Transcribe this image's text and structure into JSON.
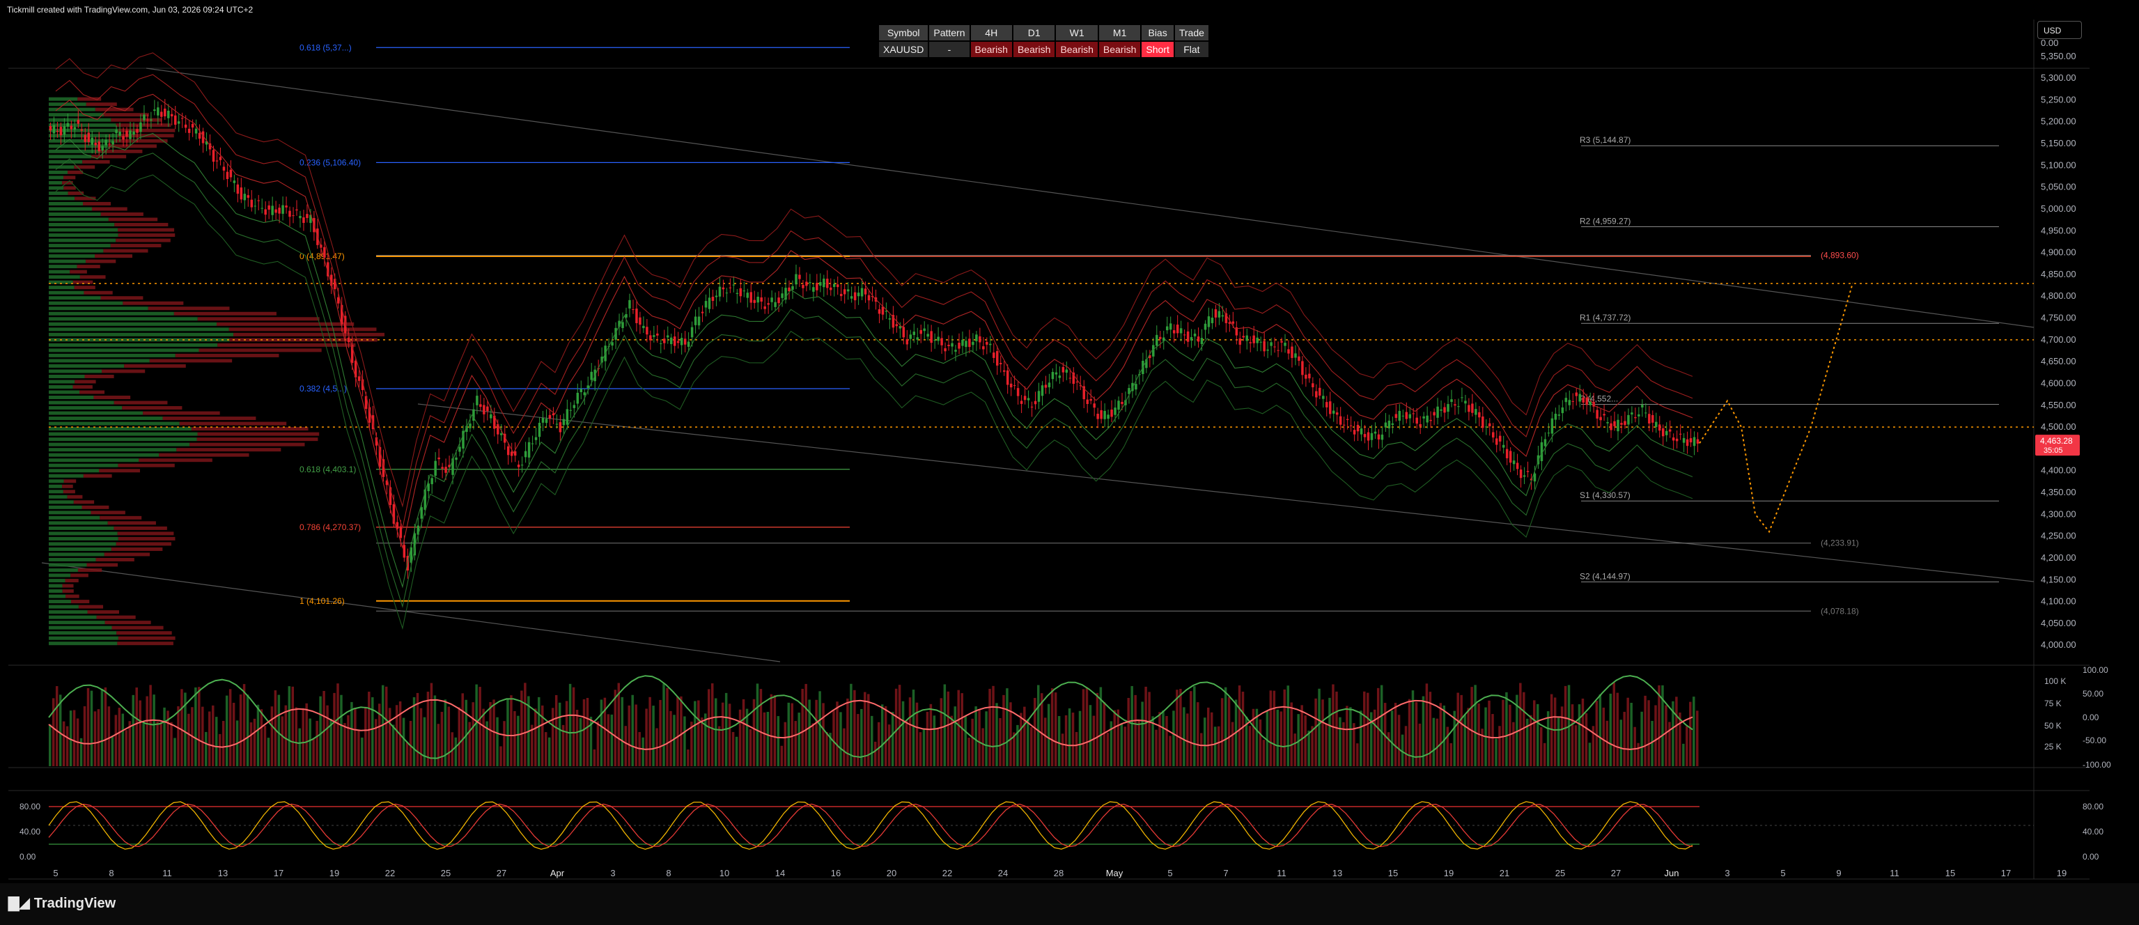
{
  "header": {
    "credit": "Tickmill created with TradingView.com, Jun 03, 2026 09:24 UTC+2",
    "currency": "USD"
  },
  "status_table": {
    "headers": [
      "Symbol",
      "Pattern",
      "4H",
      "D1",
      "W1",
      "M1",
      "Bias",
      "Trade"
    ],
    "values": [
      "XAUUSD",
      "-",
      "Bearish",
      "Bearish",
      "Bearish",
      "Bearish",
      "Short",
      "Flat"
    ]
  },
  "brand": {
    "logo_text": "TradingView",
    "logo_icon": "tradingview-logo-icon"
  },
  "colors": {
    "bg": "#000000",
    "up": "#2e9e3a",
    "down": "#e8202a",
    "fib_orange": "#ff9800",
    "fib_blue": "#2962ff",
    "price_tag": "#f23645"
  },
  "chart_data": {
    "type": "candlestick",
    "symbol": "XAUUSD",
    "price_axis": {
      "ticks": [
        "5,350.00",
        "5,300.00",
        "5,250.00",
        "5,200.00",
        "5,150.00",
        "5,100.00",
        "5,050.00",
        "5,000.00",
        "4,950.00",
        "4,900.00",
        "4,850.00",
        "4,800.00",
        "4,750.00",
        "4,700.00",
        "4,650.00",
        "4,600.00",
        "4,550.00",
        "4,500.00",
        "4,450.00",
        "4,400.00",
        "4,350.00",
        "4,300.00",
        "4,250.00",
        "4,200.00",
        "4,150.00",
        "4,100.00",
        "4,050.00",
        "4,000.00"
      ],
      "top_label": "0.00",
      "ylim": [
        3970,
        5380
      ]
    },
    "last_price": {
      "value": "4,463.28",
      "countdown": "35:05"
    },
    "x_axis_ticks": [
      "5",
      "8",
      "11",
      "13",
      "17",
      "19",
      "22",
      "25",
      "27",
      "Apr",
      "3",
      "8",
      "10",
      "14",
      "16",
      "20",
      "22",
      "24",
      "28",
      "May",
      "5",
      "7",
      "11",
      "13",
      "15",
      "19",
      "21",
      "25",
      "27",
      "Jun",
      "3",
      "5",
      "9",
      "11",
      "15",
      "17",
      "19"
    ],
    "fibonacci": [
      {
        "label": "0.618 (5,37...)",
        "price": 5370,
        "color": "blue"
      },
      {
        "label": "0.236 (5,106.40)",
        "price": 5106.4,
        "color": "blue"
      },
      {
        "label": "0 (4,891.47)",
        "price": 4891.47,
        "color": "orange"
      },
      {
        "label": "0.382 (4,5...)",
        "price": 4588,
        "color": "blue"
      },
      {
        "label": "0.618 (4,403.1)",
        "price": 4403.1,
        "color": "green"
      },
      {
        "label": "0.786 (4,270.37)",
        "price": 4270.37,
        "color": "red"
      },
      {
        "label": "1 (4,101.26)",
        "price": 4101.26,
        "color": "orange"
      }
    ],
    "pivots": [
      {
        "label": "R3 (5,144.87)",
        "price": 5144.87
      },
      {
        "label": "R2 (4,959.27)",
        "price": 4959.27
      },
      {
        "label": "R1 (4,737.72)",
        "price": 4737.72
      },
      {
        "label": "P (4,552...",
        "price": 4552
      },
      {
        "label": "S1 (4,330.57)",
        "price": 4330.57
      },
      {
        "label": "S2 (4,144.97)",
        "price": 4144.97
      }
    ],
    "right_labels": [
      {
        "label": "(4,893.60)",
        "price": 4893.6,
        "color": "red"
      },
      {
        "label": "(4,233.91)",
        "price": 4233.91,
        "color": "gray"
      },
      {
        "label": "(4,078.18)",
        "price": 4078.18,
        "color": "gray"
      }
    ],
    "dotted_levels": [
      4829,
      4700,
      4500
    ],
    "close_series": [
      5180,
      5195,
      5155,
      5140,
      5172,
      5168,
      5205,
      5225,
      5210,
      5190,
      5170,
      5120,
      5080,
      5030,
      5010,
      4995,
      5000,
      4985,
      4975,
      4880,
      4780,
      4650,
      4550,
      4420,
      4290,
      4180,
      4320,
      4420,
      4400,
      4480,
      4560,
      4520,
      4460,
      4410,
      4470,
      4530,
      4500,
      4560,
      4600,
      4660,
      4720,
      4780,
      4720,
      4700,
      4700,
      4690,
      4760,
      4800,
      4820,
      4810,
      4790,
      4780,
      4800,
      4840,
      4820,
      4830,
      4815,
      4800,
      4810,
      4770,
      4740,
      4700,
      4720,
      4700,
      4680,
      4690,
      4700,
      4680,
      4620,
      4570,
      4550,
      4600,
      4630,
      4610,
      4560,
      4520,
      4540,
      4580,
      4640,
      4700,
      4730,
      4710,
      4700,
      4760,
      4750,
      4700,
      4700,
      4680,
      4690,
      4660,
      4600,
      4560,
      4520,
      4500,
      4480,
      4480,
      4520,
      4530,
      4510,
      4530,
      4550,
      4560,
      4530,
      4490,
      4450,
      4400,
      4380,
      4480,
      4540,
      4570,
      4560,
      4520,
      4500,
      4520,
      4540,
      4500,
      4480,
      4470,
      4463.28
    ],
    "projection": {
      "style": "dotted",
      "color": "orange",
      "path_prices": [
        4463,
        4560,
        4500,
        4300,
        4260,
        4500,
        4830
      ]
    },
    "oscillator_1": {
      "ticks": [
        "100.00",
        "50.00",
        "0.00",
        "-50.00",
        "-100.00"
      ],
      "volume_ticks": [
        "100 K",
        "75 K",
        "50 K",
        "25 K"
      ],
      "ylim": [
        -100,
        100
      ]
    },
    "oscillator_2": {
      "ticks": [
        "80.00",
        "40.00",
        "0.00"
      ],
      "overbought": 80,
      "oversold": 20,
      "ylim": [
        0,
        100
      ]
    }
  }
}
